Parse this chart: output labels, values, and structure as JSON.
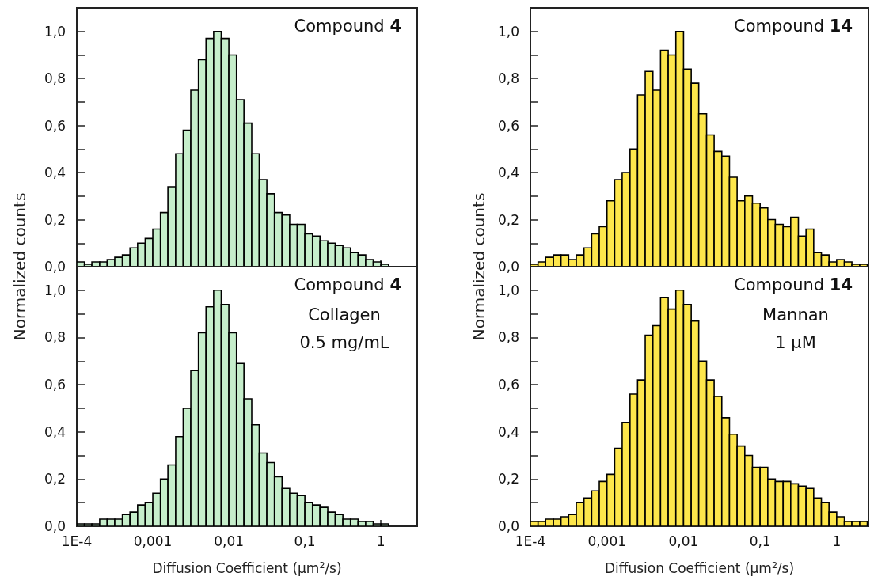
{
  "chart_data": [
    {
      "type": "histogram",
      "title": "Compound 4",
      "ylabel": "Normalized counts",
      "color": "#c6eecb",
      "log": "x",
      "tick_labels": "y",
      "bins": [
        0.0001,
        0.000126,
        0.000158,
        0.0002,
        0.000251,
        0.000316,
        0.000398,
        0.000501,
        0.000631,
        0.000794,
        0.001,
        0.00126,
        0.00158,
        0.002,
        0.00251,
        0.00316,
        0.00398,
        0.00501,
        0.00631,
        0.00794,
        0.01,
        0.0126,
        0.0158,
        0.02,
        0.0251,
        0.0316,
        0.0398,
        0.0501,
        0.0631,
        0.0794,
        0.1,
        0.126,
        0.158,
        0.2,
        0.251,
        0.316,
        0.398,
        0.501,
        0.631,
        0.794,
        1,
        1.26
      ],
      "values": [
        0.02,
        0.01,
        0.02,
        0.02,
        0.03,
        0.04,
        0.05,
        0.08,
        0.1,
        0.12,
        0.16,
        0.23,
        0.34,
        0.48,
        0.58,
        0.75,
        0.88,
        0.97,
        1.0,
        0.97,
        0.9,
        0.71,
        0.61,
        0.48,
        0.37,
        0.31,
        0.23,
        0.22,
        0.18,
        0.18,
        0.14,
        0.13,
        0.11,
        0.1,
        0.09,
        0.08,
        0.06,
        0.05,
        0.03,
        0.02,
        0.01
      ],
      "xlim": [
        0.0001,
        3
      ],
      "xticks": [
        {
          "value": 0.0001,
          "label": null
        },
        {
          "value": 0.001,
          "label": null
        },
        {
          "value": 0.01,
          "label": null
        },
        {
          "value": 0.1,
          "label": null
        },
        {
          "value": 1,
          "label": null
        }
      ],
      "ylim": [
        0,
        1.1
      ],
      "yticks": [
        {
          "value": 0,
          "label": "0,0"
        },
        {
          "value": 0.1,
          "label": null
        },
        {
          "value": 0.2,
          "label": "0,2"
        },
        {
          "value": 0.3,
          "label": null
        },
        {
          "value": 0.4,
          "label": "0,4"
        },
        {
          "value": 0.5,
          "label": null
        },
        {
          "value": 0.6,
          "label": "0,6"
        },
        {
          "value": 0.7,
          "label": null
        },
        {
          "value": 0.8,
          "label": "0,8"
        },
        {
          "value": 0.9,
          "label": null
        },
        {
          "value": 1,
          "label": "1,0"
        }
      ]
    },
    {
      "type": "histogram",
      "title": "Compound 14",
      "ylabel": "Normalized counts",
      "color": "#fde64b",
      "log": "x",
      "tick_labels": "y",
      "bins": [
        0.0001,
        0.000126,
        0.000158,
        0.0002,
        0.000251,
        0.000316,
        0.000398,
        0.000501,
        0.000631,
        0.000794,
        0.001,
        0.00126,
        0.00158,
        0.002,
        0.00251,
        0.00316,
        0.00398,
        0.00501,
        0.00631,
        0.00794,
        0.01,
        0.0126,
        0.0158,
        0.02,
        0.0251,
        0.0316,
        0.0398,
        0.0501,
        0.0631,
        0.0794,
        0.1,
        0.126,
        0.158,
        0.2,
        0.251,
        0.316,
        0.398,
        0.501,
        0.631,
        0.794,
        1,
        1.26,
        1.58,
        2,
        2.51
      ],
      "values": [
        0.01,
        0.02,
        0.04,
        0.05,
        0.05,
        0.03,
        0.05,
        0.08,
        0.14,
        0.17,
        0.28,
        0.37,
        0.4,
        0.5,
        0.73,
        0.83,
        0.75,
        0.92,
        0.9,
        1.0,
        0.84,
        0.78,
        0.65,
        0.56,
        0.49,
        0.47,
        0.38,
        0.28,
        0.3,
        0.27,
        0.25,
        0.2,
        0.18,
        0.17,
        0.21,
        0.13,
        0.16,
        0.06,
        0.05,
        0.02,
        0.03,
        0.02,
        0.01,
        0.01
      ],
      "xlim": [
        0.0001,
        2.6
      ],
      "xticks": [
        {
          "value": 0.0001,
          "label": null
        },
        {
          "value": 0.001,
          "label": null
        },
        {
          "value": 0.01,
          "label": null
        },
        {
          "value": 0.1,
          "label": null
        },
        {
          "value": 1,
          "label": null
        }
      ],
      "ylim": [
        0,
        1.1
      ],
      "yticks": [
        {
          "value": 0,
          "label": "0,0"
        },
        {
          "value": 0.1,
          "label": null
        },
        {
          "value": 0.2,
          "label": "0,2"
        },
        {
          "value": 0.3,
          "label": null
        },
        {
          "value": 0.4,
          "label": "0,4"
        },
        {
          "value": 0.5,
          "label": null
        },
        {
          "value": 0.6,
          "label": "0,6"
        },
        {
          "value": 0.7,
          "label": null
        },
        {
          "value": 0.8,
          "label": "0,8"
        },
        {
          "value": 0.9,
          "label": null
        },
        {
          "value": 1,
          "label": "1,0"
        }
      ]
    },
    {
      "type": "histogram",
      "title": "Compound 4",
      "annotations": [
        "Collagen",
        "0.5 mg/mL"
      ],
      "xlabel": "Diffusion Coefficient (μm$^{2}$/s)",
      "color": "#c6eecb",
      "log": "x",
      "bins": [
        0.0001,
        0.000126,
        0.000158,
        0.0002,
        0.000251,
        0.000316,
        0.000398,
        0.000501,
        0.000631,
        0.000794,
        0.001,
        0.00126,
        0.00158,
        0.002,
        0.00251,
        0.00316,
        0.00398,
        0.00501,
        0.00631,
        0.00794,
        0.01,
        0.0126,
        0.0158,
        0.02,
        0.0251,
        0.0316,
        0.0398,
        0.0501,
        0.0631,
        0.0794,
        0.1,
        0.126,
        0.158,
        0.2,
        0.251,
        0.316,
        0.398,
        0.501,
        0.631,
        0.794,
        1,
        1.26
      ],
      "values": [
        0.01,
        0.01,
        0.01,
        0.03,
        0.03,
        0.03,
        0.05,
        0.06,
        0.09,
        0.1,
        0.14,
        0.2,
        0.26,
        0.38,
        0.5,
        0.66,
        0.82,
        0.93,
        1.0,
        0.94,
        0.82,
        0.69,
        0.54,
        0.43,
        0.31,
        0.27,
        0.21,
        0.16,
        0.14,
        0.13,
        0.1,
        0.09,
        0.08,
        0.06,
        0.05,
        0.03,
        0.03,
        0.02,
        0.02,
        0.01,
        0.01
      ],
      "xlim": [
        0.0001,
        3
      ],
      "xticks": [
        {
          "value": 0.0001,
          "label": "1E-4"
        },
        {
          "value": 0.001,
          "label": "0,001"
        },
        {
          "value": 0.01,
          "label": "0,01"
        },
        {
          "value": 0.1,
          "label": "0,1"
        },
        {
          "value": 1,
          "label": "1"
        }
      ],
      "ylim": [
        0,
        1.1
      ],
      "yticks": [
        {
          "value": 0,
          "label": "0,0"
        },
        {
          "value": 0.1,
          "label": null
        },
        {
          "value": 0.2,
          "label": "0,2"
        },
        {
          "value": 0.3,
          "label": null
        },
        {
          "value": 0.4,
          "label": "0,4"
        },
        {
          "value": 0.5,
          "label": null
        },
        {
          "value": 0.6,
          "label": "0,6"
        },
        {
          "value": 0.7,
          "label": null
        },
        {
          "value": 0.8,
          "label": "0,8"
        },
        {
          "value": 0.9,
          "label": null
        },
        {
          "value": 1,
          "label": "1,0"
        }
      ]
    },
    {
      "type": "histogram",
      "title": "Compound 14",
      "annotations": [
        "Mannan",
        "1 μM"
      ],
      "xlabel": "Diffusion Coefficient (μm$^{2}$/s)",
      "color": "#fde64b",
      "log": "x",
      "bins": [
        0.0001,
        0.000126,
        0.000158,
        0.0002,
        0.000251,
        0.000316,
        0.000398,
        0.000501,
        0.000631,
        0.000794,
        0.001,
        0.00126,
        0.00158,
        0.002,
        0.00251,
        0.00316,
        0.00398,
        0.00501,
        0.00631,
        0.00794,
        0.01,
        0.0126,
        0.0158,
        0.02,
        0.0251,
        0.0316,
        0.0398,
        0.0501,
        0.0631,
        0.0794,
        0.1,
        0.126,
        0.158,
        0.2,
        0.251,
        0.316,
        0.398,
        0.501,
        0.631,
        0.794,
        1,
        1.26,
        1.58,
        2,
        2.51
      ],
      "values": [
        0.02,
        0.02,
        0.03,
        0.03,
        0.04,
        0.05,
        0.1,
        0.12,
        0.15,
        0.19,
        0.22,
        0.33,
        0.44,
        0.56,
        0.62,
        0.81,
        0.85,
        0.97,
        0.92,
        1.0,
        0.94,
        0.87,
        0.7,
        0.62,
        0.55,
        0.46,
        0.39,
        0.34,
        0.3,
        0.25,
        0.25,
        0.2,
        0.19,
        0.19,
        0.18,
        0.17,
        0.16,
        0.12,
        0.1,
        0.06,
        0.04,
        0.02,
        0.02,
        0.02
      ],
      "xlim": [
        0.0001,
        2.6
      ],
      "xticks": [
        {
          "value": 0.0001,
          "label": "1E-4"
        },
        {
          "value": 0.001,
          "label": "0,001"
        },
        {
          "value": 0.01,
          "label": "0,01"
        },
        {
          "value": 0.1,
          "label": "0,1"
        },
        {
          "value": 1,
          "label": "1"
        }
      ],
      "ylim": [
        0,
        1.1
      ],
      "yticks": [
        {
          "value": 0,
          "label": "0,0"
        },
        {
          "value": 0.1,
          "label": null
        },
        {
          "value": 0.2,
          "label": "0,2"
        },
        {
          "value": 0.3,
          "label": null
        },
        {
          "value": 0.4,
          "label": "0,4"
        },
        {
          "value": 0.5,
          "label": null
        },
        {
          "value": 0.6,
          "label": "0,6"
        },
        {
          "value": 0.7,
          "label": null
        },
        {
          "value": 0.8,
          "label": "0,8"
        },
        {
          "value": 0.9,
          "label": null
        },
        {
          "value": 1,
          "label": "1,0"
        }
      ]
    }
  ]
}
